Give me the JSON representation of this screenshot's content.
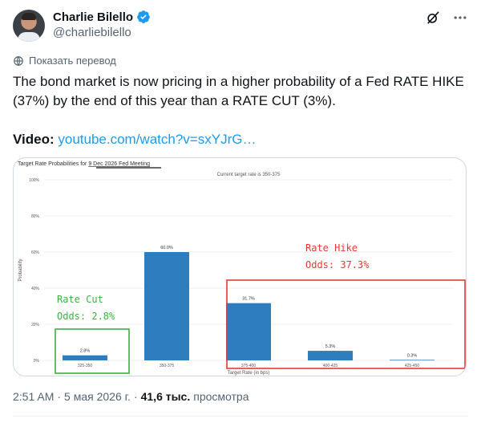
{
  "author": {
    "display_name": "Charlie Bilello",
    "handle": "@charliebilello"
  },
  "translate_label": "Показать перевод",
  "tweet_text": "The bond market is now pricing in a higher probability of a Fed RATE HIKE (37%) by the end of this year than a RATE CUT (3%).",
  "video": {
    "label": "Video:",
    "link": "youtube.com/watch?v=sxYJrG…"
  },
  "footer": {
    "time": "2:51 AM",
    "sep1": "·",
    "date": "5 мая 2026 г.",
    "sep2": "·",
    "views_count": "41,6 тыс.",
    "views_label": "просмотра"
  },
  "colors": {
    "bar": "#2e7dbf",
    "cut_box": "#3cb043",
    "hike_box": "#e53935",
    "link": "#1d9bf0"
  },
  "chart_data": {
    "type": "bar",
    "title_prefix": "Target Rate Probabilities for ",
    "title_meeting": "9 Dec 2026 Fed Meeting",
    "subtitle": "Current target rate is 350-375",
    "xlabel": "Target Rate (in bps)",
    "ylabel": "Probability",
    "ylim": [
      0,
      100
    ],
    "yticks": [
      "0%",
      "20%",
      "40%",
      "60%",
      "80%",
      "100%"
    ],
    "categories": [
      "325-350",
      "350-375",
      "375-400",
      "400-425",
      "425-450"
    ],
    "values": [
      2.8,
      60.0,
      31.7,
      5.3,
      0.3
    ],
    "value_labels": [
      "2.8%",
      "60.0%",
      "31.7%",
      "5.3%",
      "0.3%"
    ],
    "annotations": {
      "cut_title": "Rate Cut",
      "cut_odds": "Odds: 2.8%",
      "hike_title": "Rate Hike",
      "hike_odds": "Odds: 37.3%"
    }
  }
}
